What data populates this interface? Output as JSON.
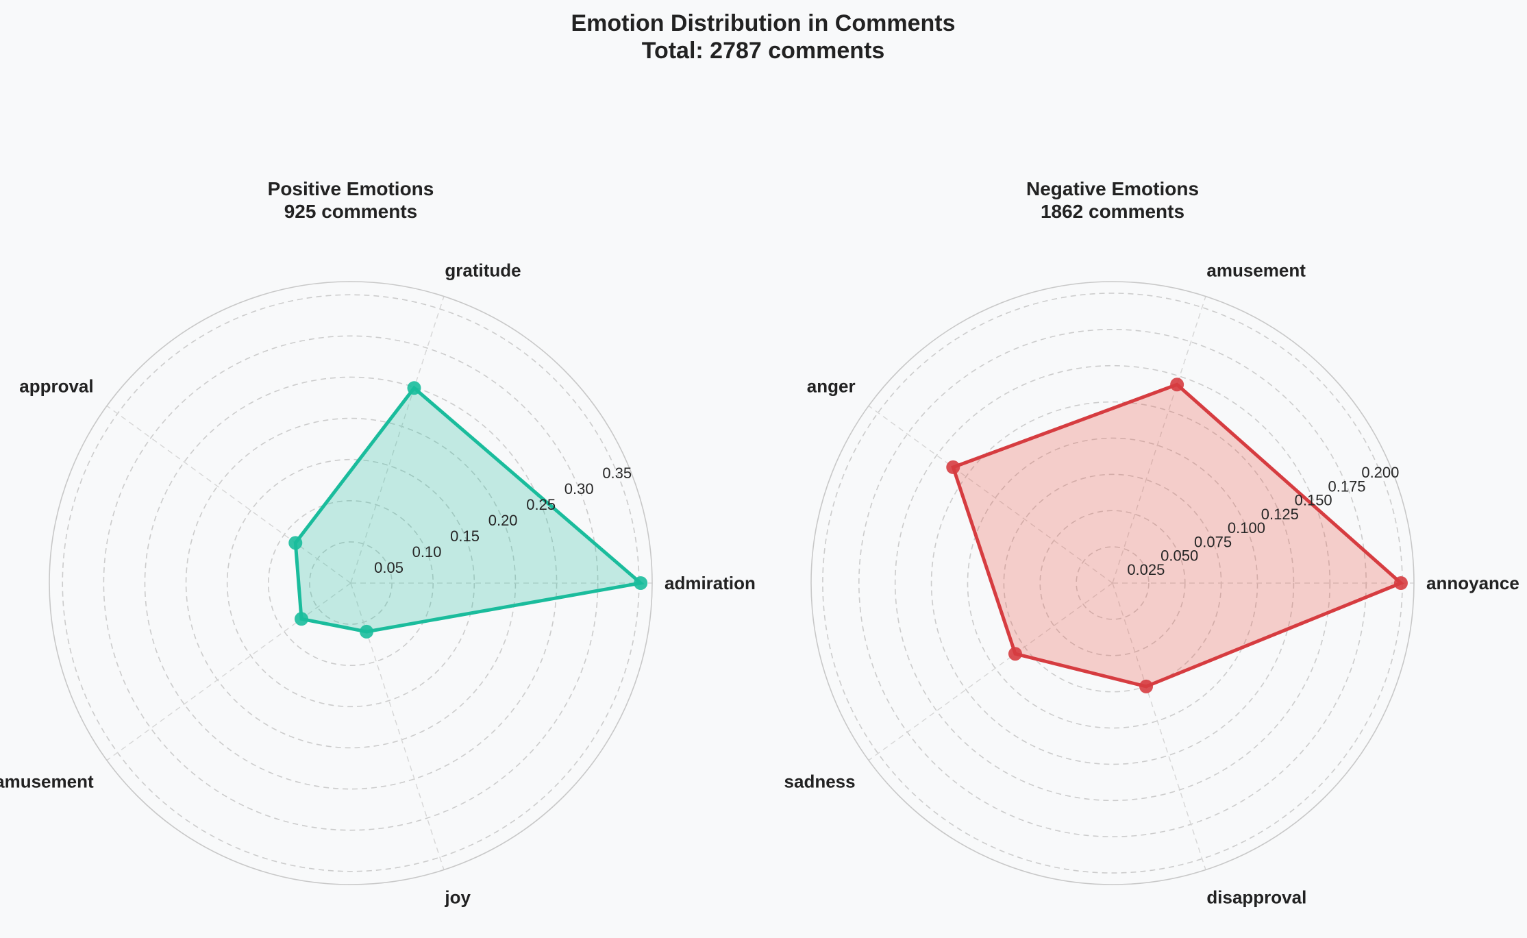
{
  "figure": {
    "title_line1": "Emotion Distribution in Comments",
    "title_line2": "Total: 2787 comments"
  },
  "chart_data": [
    {
      "type": "radar",
      "title": "Positive Emotions",
      "subtitle": "925 comments",
      "categories": [
        "admiration",
        "gratitude",
        "approval",
        "amusement",
        "joy"
      ],
      "values": [
        0.352,
        0.249,
        0.083,
        0.074,
        0.062
      ],
      "rlim": [
        0,
        0.366
      ],
      "rticks": [
        0.05,
        0.1,
        0.15,
        0.2,
        0.25,
        0.3,
        0.35
      ],
      "rtick_labels": [
        "0.05",
        "0.10",
        "0.15",
        "0.20",
        "0.25",
        "0.30",
        "0.35"
      ],
      "grid": true,
      "line_color": "#1abc9c",
      "fill_color": "#1abc9c"
    },
    {
      "type": "radar",
      "title": "Negative Emotions",
      "subtitle": "1862 comments",
      "categories": [
        "annoyance",
        "amusement",
        "anger",
        "sadness",
        "disapproval"
      ],
      "values": [
        0.199,
        0.144,
        0.136,
        0.083,
        0.075
      ],
      "rlim": [
        0,
        0.208
      ],
      "rticks": [
        0.025,
        0.05,
        0.075,
        0.1,
        0.125,
        0.15,
        0.175,
        0.2
      ],
      "rtick_labels": [
        "0.025",
        "0.050",
        "0.075",
        "0.100",
        "0.125",
        "0.150",
        "0.175",
        "0.200"
      ],
      "grid": true,
      "line_color": "#d63c40",
      "fill_color": "#e74c3c"
    }
  ]
}
